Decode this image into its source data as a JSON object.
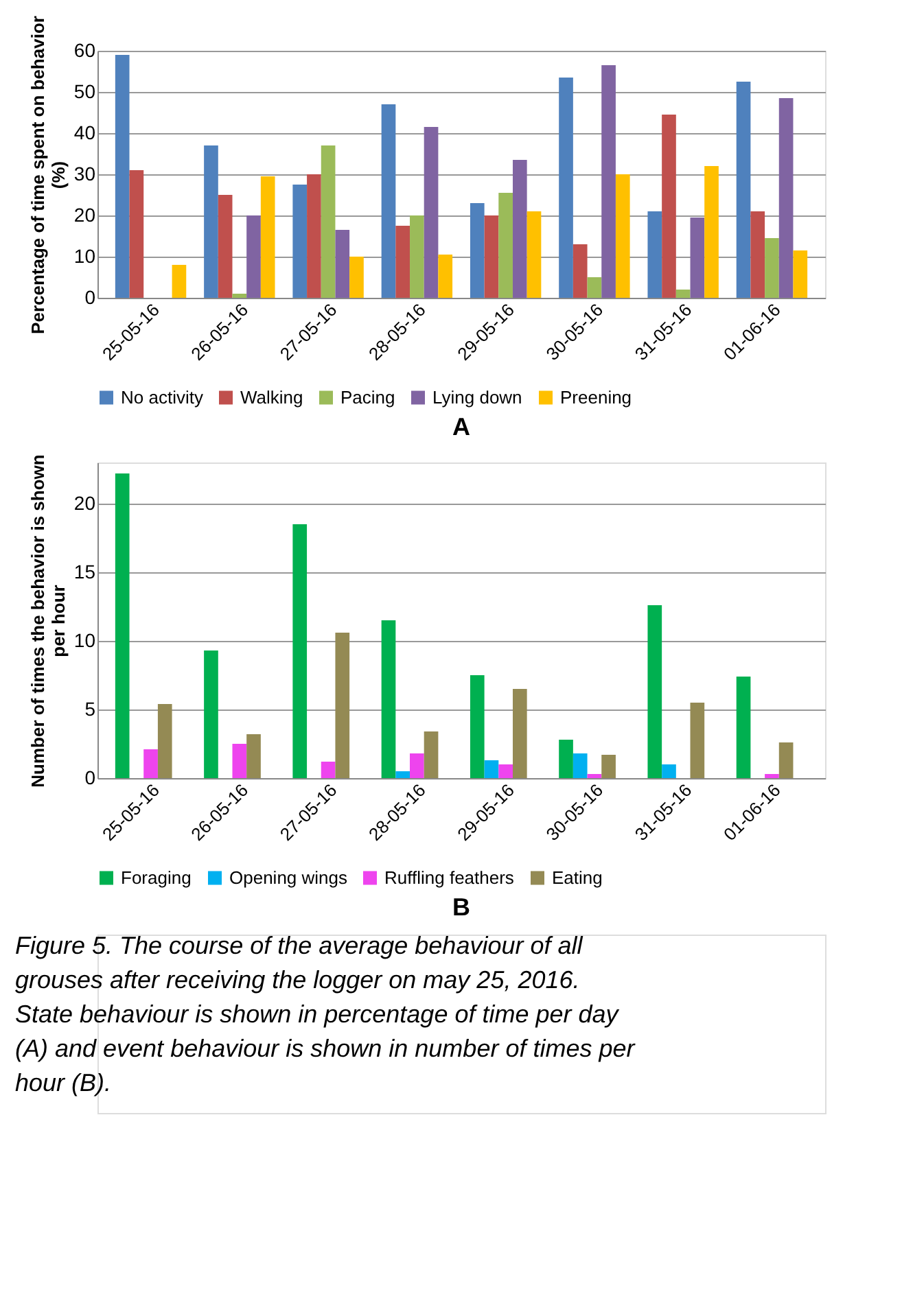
{
  "chart_data": [
    {
      "type": "bar",
      "title": "A",
      "ylabel": "Percentage of time spent on behavior (%)",
      "categories": [
        "25-05-16",
        "26-05-16",
        "27-05-16",
        "28-05-16",
        "29-05-16",
        "30-05-16",
        "31-05-16",
        "01-06-16"
      ],
      "series": [
        {
          "name": "No activity",
          "color": "#4f81bd",
          "values": [
            59,
            37,
            27.5,
            47,
            23,
            53.5,
            21,
            52.5
          ]
        },
        {
          "name": "Walking",
          "color": "#c0504d",
          "values": [
            31,
            25,
            30,
            17.5,
            20,
            13,
            44.5,
            21
          ]
        },
        {
          "name": "Pacing",
          "color": "#9bbb59",
          "values": [
            0,
            1,
            37,
            20,
            25.5,
            5,
            2,
            14.5
          ]
        },
        {
          "name": "Lying down",
          "color": "#8064a2",
          "values": [
            0,
            20,
            16.5,
            41.5,
            33.5,
            56.5,
            19.5,
            48.5
          ]
        },
        {
          "name": "Preening",
          "color": "#ffc000",
          "values": [
            8,
            29.5,
            10,
            10.5,
            21,
            30,
            32,
            11.5
          ]
        }
      ],
      "ylim": [
        0,
        60
      ],
      "yticks": [
        0,
        10,
        20,
        30,
        40,
        50,
        60
      ],
      "grid": "y",
      "legend": "bottom"
    },
    {
      "type": "bar",
      "title": "B",
      "ylabel": "Number of times the behavior is shown per hour",
      "categories": [
        "25-05-16",
        "26-05-16",
        "27-05-16",
        "28-05-16",
        "29-05-16",
        "30-05-16",
        "31-05-16",
        "01-06-16"
      ],
      "series": [
        {
          "name": "Foraging",
          "color": "#00b050",
          "values": [
            22.2,
            9.3,
            18.5,
            11.5,
            7.5,
            2.8,
            12.6,
            7.4
          ]
        },
        {
          "name": "Opening wings",
          "color": "#00b0f0",
          "values": [
            0,
            0,
            0,
            0.5,
            1.3,
            1.8,
            1.0,
            0
          ]
        },
        {
          "name": "Ruffling feathers",
          "color": "#ee44ee",
          "values": [
            2.1,
            2.5,
            1.2,
            1.8,
            1.0,
            0.3,
            0,
            0.3
          ]
        },
        {
          "name": "Eating",
          "color": "#948a54",
          "values": [
            5.4,
            3.2,
            10.6,
            3.4,
            6.5,
            1.7,
            5.5,
            2.6
          ]
        }
      ],
      "ylim": [
        0,
        23
      ],
      "yticks": [
        0,
        5,
        10,
        15,
        20
      ],
      "grid": "y",
      "legend": "bottom",
      "annotations": [
        "Figure 5. The course of the average behaviour of all grouses after receiving the logger on may 25, 2016. State behaviour is shown in percentage of time per day (A) and event behaviour is shown in number of times per hour (B)."
      ]
    }
  ]
}
